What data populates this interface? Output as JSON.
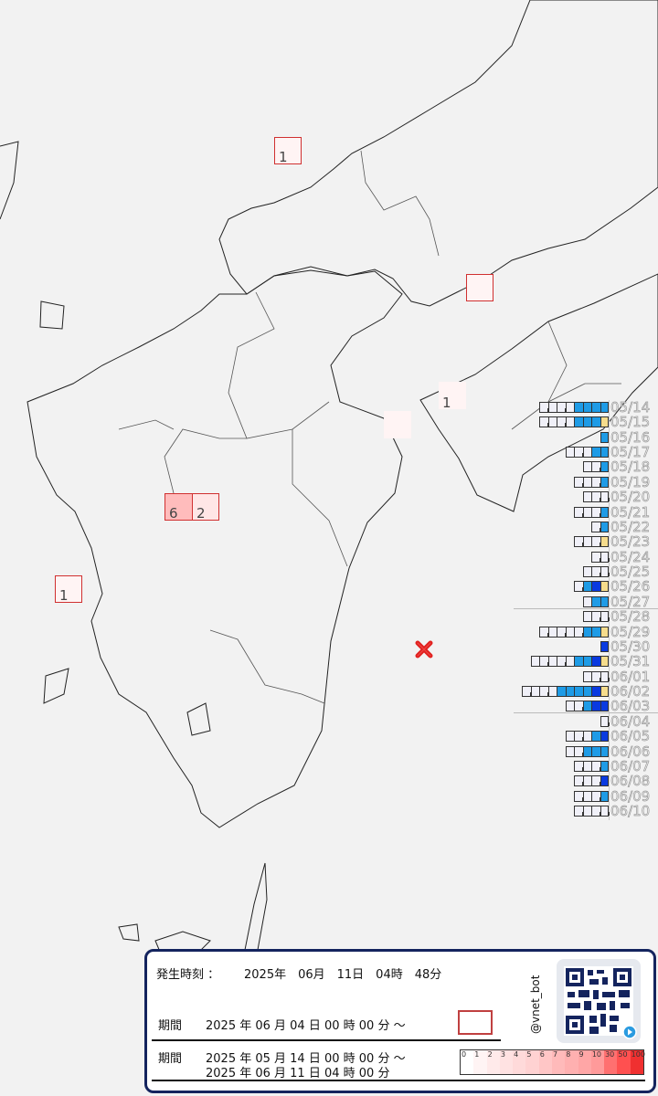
{
  "map": {
    "epicenter_icon": "x-mark-icon",
    "epicenter_color": "#e0201e",
    "intensity_boxes": [
      {
        "count": "1",
        "level": 1,
        "outlined": true
      },
      {
        "count": "",
        "level": 1,
        "outlined": true
      },
      {
        "count": "1",
        "level": 1,
        "outlined": false
      },
      {
        "count": "",
        "level": 1,
        "outlined": false
      },
      {
        "count": "6",
        "level": 6,
        "outlined": true
      },
      {
        "count": "2",
        "level": 2,
        "outlined": true
      },
      {
        "count": "1",
        "level": 1,
        "outlined": true
      }
    ]
  },
  "daily_counts": {
    "segment_colors": {
      "light": "#f0f0f8",
      "blue": "#1e9be6",
      "dark": "#0a3ae0",
      "yellow": "#f5dc8c"
    },
    "days": [
      {
        "date": "05/14",
        "light": 4,
        "blue": 4,
        "dark": 0,
        "yellow": 0
      },
      {
        "date": "05/15",
        "light": 4,
        "blue": 3,
        "dark": 0,
        "yellow": 1
      },
      {
        "date": "05/16",
        "light": 0,
        "blue": 1,
        "dark": 0,
        "yellow": 0
      },
      {
        "date": "05/17",
        "light": 3,
        "blue": 2,
        "dark": 0,
        "yellow": 0
      },
      {
        "date": "05/18",
        "light": 2,
        "blue": 1,
        "dark": 0,
        "yellow": 0
      },
      {
        "date": "05/19",
        "light": 3,
        "blue": 1,
        "dark": 0,
        "yellow": 0
      },
      {
        "date": "05/20",
        "light": 3,
        "blue": 0,
        "dark": 0,
        "yellow": 0
      },
      {
        "date": "05/21",
        "light": 3,
        "blue": 1,
        "dark": 0,
        "yellow": 0
      },
      {
        "date": "05/22",
        "light": 1,
        "blue": 1,
        "dark": 0,
        "yellow": 0
      },
      {
        "date": "05/23",
        "light": 3,
        "blue": 0,
        "dark": 0,
        "yellow": 1
      },
      {
        "date": "05/24",
        "light": 2,
        "blue": 0,
        "dark": 0,
        "yellow": 0
      },
      {
        "date": "05/25",
        "light": 3,
        "blue": 0,
        "dark": 0,
        "yellow": 0
      },
      {
        "date": "05/26",
        "light": 1,
        "blue": 1,
        "dark": 1,
        "yellow": 1
      },
      {
        "date": "05/27",
        "light": 1,
        "blue": 2,
        "dark": 0,
        "yellow": 0
      },
      {
        "date": "05/28",
        "light": 3,
        "blue": 0,
        "dark": 0,
        "yellow": 0
      },
      {
        "date": "05/29",
        "light": 5,
        "blue": 2,
        "dark": 0,
        "yellow": 1
      },
      {
        "date": "05/30",
        "light": 0,
        "blue": 0,
        "dark": 1,
        "yellow": 0
      },
      {
        "date": "05/31",
        "light": 5,
        "blue": 2,
        "dark": 1,
        "yellow": 1
      },
      {
        "date": "06/01",
        "light": 3,
        "blue": 0,
        "dark": 0,
        "yellow": 0
      },
      {
        "date": "06/02",
        "light": 4,
        "blue": 4,
        "dark": 1,
        "yellow": 1
      },
      {
        "date": "06/03",
        "light": 2,
        "blue": 1,
        "dark": 2,
        "yellow": 0
      },
      {
        "date": "06/04",
        "light": 1,
        "blue": 0,
        "dark": 0,
        "yellow": 0
      },
      {
        "date": "06/05",
        "light": 3,
        "blue": 1,
        "dark": 1,
        "yellow": 0
      },
      {
        "date": "06/06",
        "light": 2,
        "blue": 3,
        "dark": 0,
        "yellow": 0
      },
      {
        "date": "06/07",
        "light": 3,
        "blue": 1,
        "dark": 0,
        "yellow": 0
      },
      {
        "date": "06/08",
        "light": 3,
        "blue": 0,
        "dark": 1,
        "yellow": 0
      },
      {
        "date": "06/09",
        "light": 3,
        "blue": 1,
        "dark": 0,
        "yellow": 0
      },
      {
        "date": "06/10",
        "light": 4,
        "blue": 0,
        "dark": 0,
        "yellow": 0
      }
    ]
  },
  "panel": {
    "occurrence_label": "発生時刻 ：",
    "occurrence_time": "2025年　06月　11日　04時　48分",
    "period1_label": "期間",
    "period1_value": "2025 年  06 月  04 日  00 時  00 分 ～",
    "period2_label": "期間",
    "period2_start": "2025 年  05 月  14 日  00 時  00 分 ～",
    "period2_end": "2025 年  06 月  11 日  04 時  00 分",
    "handle": "@vnet_bot",
    "qr_icon": "qr-code-icon",
    "play_icon": "play-icon",
    "legend_labels": [
      "0",
      "1",
      "2",
      "3",
      "4",
      "5",
      "6",
      "7",
      "8",
      "9",
      "10",
      "30",
      "50",
      "100"
    ],
    "legend_colors": [
      "#ffffff",
      "#fff4f4",
      "#ffeaea",
      "#ffe2e2",
      "#ffdada",
      "#ffd2d2",
      "#ffc6c6",
      "#ffbaba",
      "#ffb0b0",
      "#ffa6a6",
      "#ff9a9a",
      "#ff7070",
      "#ff5050",
      "#f03030"
    ]
  }
}
